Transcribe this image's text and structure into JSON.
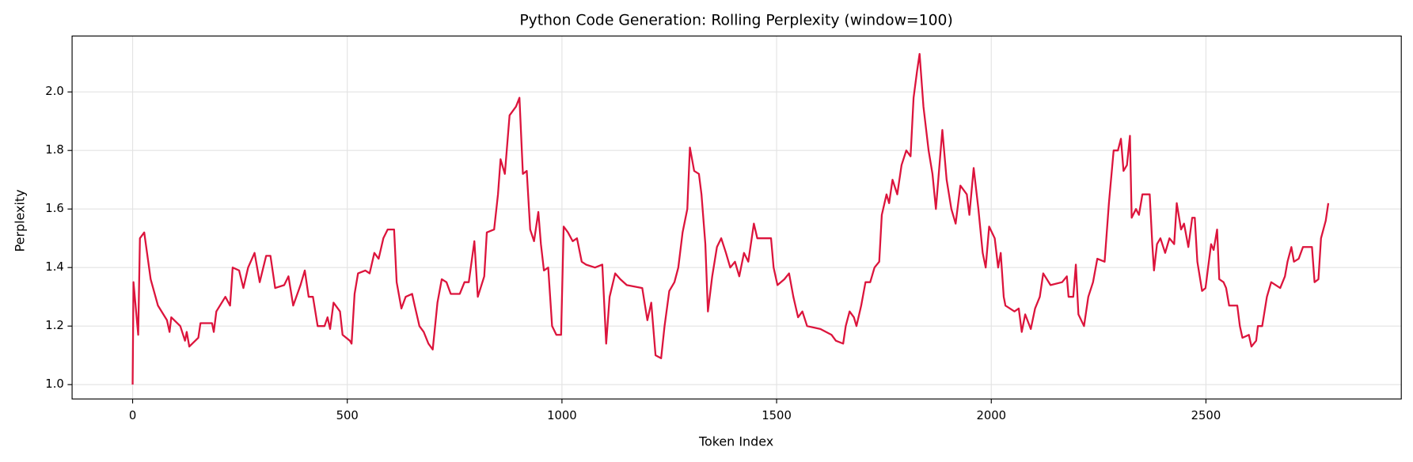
{
  "chart_data": {
    "type": "line",
    "title": "Python Code Generation: Rolling Perplexity (window=100)",
    "x_label": "Token Index",
    "y_label": "Perplexity",
    "color": "#dc143c",
    "grid": true,
    "xlim": [
      -141,
      2955
    ],
    "ylim": [
      0.951,
      2.191
    ],
    "xticks": [
      0,
      500,
      1000,
      1500,
      2000,
      2500
    ],
    "yticks": [
      {
        "value": 1,
        "label": "1.0"
      },
      1.2,
      1.4,
      1.6,
      1.8,
      {
        "value": 2,
        "label": "2.0"
      }
    ],
    "x": [
      0,
      2,
      13,
      17,
      27,
      42,
      59,
      80,
      86,
      90,
      111,
      122,
      126,
      132,
      153,
      158,
      185,
      189,
      195,
      216,
      227,
      233,
      248,
      258,
      269,
      284,
      296,
      311,
      321,
      332,
      353,
      363,
      374,
      391,
      401,
      410,
      420,
      431,
      447,
      454,
      460,
      468,
      483,
      489,
      506,
      510,
      517,
      525,
      542,
      552,
      563,
      573,
      584,
      594,
      609,
      615,
      626,
      636,
      651,
      657,
      668,
      678,
      689,
      699,
      710,
      720,
      731,
      741,
      762,
      773,
      783,
      796,
      804,
      819,
      825,
      842,
      851,
      857,
      867,
      878,
      893,
      901,
      909,
      918,
      926,
      935,
      945,
      951,
      958,
      968,
      977,
      987,
      998,
      1004,
      1014,
      1025,
      1035,
      1046,
      1056,
      1077,
      1094,
      1103,
      1111,
      1124,
      1136,
      1151,
      1187,
      1199,
      1208,
      1218,
      1231,
      1239,
      1250,
      1262,
      1271,
      1281,
      1292,
      1298,
      1308,
      1319,
      1325,
      1334,
      1340,
      1350,
      1361,
      1371,
      1382,
      1392,
      1403,
      1413,
      1424,
      1434,
      1447,
      1455,
      1487,
      1493,
      1502,
      1518,
      1529,
      1539,
      1550,
      1560,
      1571,
      1602,
      1628,
      1638,
      1655,
      1661,
      1670,
      1680,
      1686,
      1697,
      1707,
      1718,
      1728,
      1739,
      1745,
      1756,
      1762,
      1770,
      1781,
      1791,
      1802,
      1812,
      1819,
      1827,
      1833,
      1842,
      1854,
      1863,
      1871,
      1886,
      1896,
      1907,
      1917,
      1928,
      1943,
      1949,
      1959,
      1970,
      1980,
      1987,
      1995,
      2008,
      2016,
      2022,
      2029,
      2033,
      2054,
      2064,
      2071,
      2079,
      2092,
      2102,
      2113,
      2121,
      2138,
      2165,
      2176,
      2180,
      2191,
      2197,
      2203,
      2216,
      2226,
      2237,
      2247,
      2264,
      2274,
      2285,
      2295,
      2302,
      2308,
      2316,
      2323,
      2327,
      2337,
      2344,
      2352,
      2369,
      2375,
      2379,
      2386,
      2394,
      2405,
      2415,
      2426,
      2432,
      2442,
      2449,
      2459,
      2468,
      2474,
      2480,
      2491,
      2499,
      2505,
      2512,
      2518,
      2526,
      2531,
      2541,
      2547,
      2554,
      2573,
      2579,
      2585,
      2600,
      2606,
      2617,
      2621,
      2631,
      2642,
      2652,
      2673,
      2684,
      2690,
      2699,
      2705,
      2716,
      2726,
      2747,
      2753,
      2762,
      2768,
      2779,
      2785
    ],
    "values": [
      1.0,
      1.35,
      1.17,
      1.5,
      1.52,
      1.36,
      1.27,
      1.22,
      1.18,
      1.23,
      1.2,
      1.15,
      1.18,
      1.13,
      1.16,
      1.21,
      1.21,
      1.18,
      1.25,
      1.3,
      1.27,
      1.4,
      1.39,
      1.33,
      1.4,
      1.45,
      1.35,
      1.44,
      1.44,
      1.33,
      1.34,
      1.37,
      1.27,
      1.34,
      1.39,
      1.3,
      1.3,
      1.2,
      1.2,
      1.23,
      1.19,
      1.28,
      1.25,
      1.17,
      1.15,
      1.14,
      1.31,
      1.38,
      1.39,
      1.38,
      1.45,
      1.43,
      1.5,
      1.53,
      1.53,
      1.35,
      1.26,
      1.3,
      1.31,
      1.27,
      1.2,
      1.18,
      1.14,
      1.12,
      1.28,
      1.36,
      1.35,
      1.31,
      1.31,
      1.35,
      1.35,
      1.49,
      1.3,
      1.37,
      1.52,
      1.53,
      1.65,
      1.77,
      1.72,
      1.92,
      1.95,
      1.98,
      1.72,
      1.73,
      1.53,
      1.49,
      1.59,
      1.48,
      1.39,
      1.4,
      1.2,
      1.17,
      1.17,
      1.54,
      1.52,
      1.49,
      1.5,
      1.42,
      1.41,
      1.4,
      1.41,
      1.14,
      1.3,
      1.38,
      1.36,
      1.34,
      1.33,
      1.22,
      1.28,
      1.1,
      1.09,
      1.2,
      1.32,
      1.35,
      1.4,
      1.52,
      1.6,
      1.81,
      1.73,
      1.72,
      1.65,
      1.48,
      1.25,
      1.37,
      1.47,
      1.5,
      1.45,
      1.4,
      1.42,
      1.37,
      1.45,
      1.42,
      1.55,
      1.5,
      1.5,
      1.4,
      1.34,
      1.36,
      1.38,
      1.3,
      1.23,
      1.25,
      1.2,
      1.19,
      1.17,
      1.15,
      1.14,
      1.2,
      1.25,
      1.23,
      1.2,
      1.27,
      1.35,
      1.35,
      1.4,
      1.42,
      1.58,
      1.65,
      1.62,
      1.7,
      1.65,
      1.75,
      1.8,
      1.78,
      1.98,
      2.07,
      2.13,
      1.95,
      1.8,
      1.72,
      1.6,
      1.87,
      1.7,
      1.6,
      1.55,
      1.68,
      1.65,
      1.58,
      1.74,
      1.6,
      1.45,
      1.4,
      1.54,
      1.5,
      1.4,
      1.45,
      1.3,
      1.27,
      1.25,
      1.26,
      1.18,
      1.24,
      1.19,
      1.26,
      1.3,
      1.38,
      1.34,
      1.35,
      1.37,
      1.3,
      1.3,
      1.41,
      1.24,
      1.2,
      1.3,
      1.35,
      1.43,
      1.42,
      1.62,
      1.8,
      1.8,
      1.84,
      1.73,
      1.75,
      1.85,
      1.57,
      1.6,
      1.58,
      1.65,
      1.65,
      1.48,
      1.39,
      1.48,
      1.5,
      1.45,
      1.5,
      1.48,
      1.62,
      1.53,
      1.55,
      1.47,
      1.57,
      1.57,
      1.42,
      1.32,
      1.33,
      1.4,
      1.48,
      1.46,
      1.53,
      1.36,
      1.35,
      1.33,
      1.27,
      1.27,
      1.2,
      1.16,
      1.17,
      1.13,
      1.15,
      1.2,
      1.2,
      1.3,
      1.35,
      1.33,
      1.37,
      1.42,
      1.47,
      1.42,
      1.43,
      1.47,
      1.47,
      1.35,
      1.36,
      1.5,
      1.56,
      1.62
    ]
  }
}
